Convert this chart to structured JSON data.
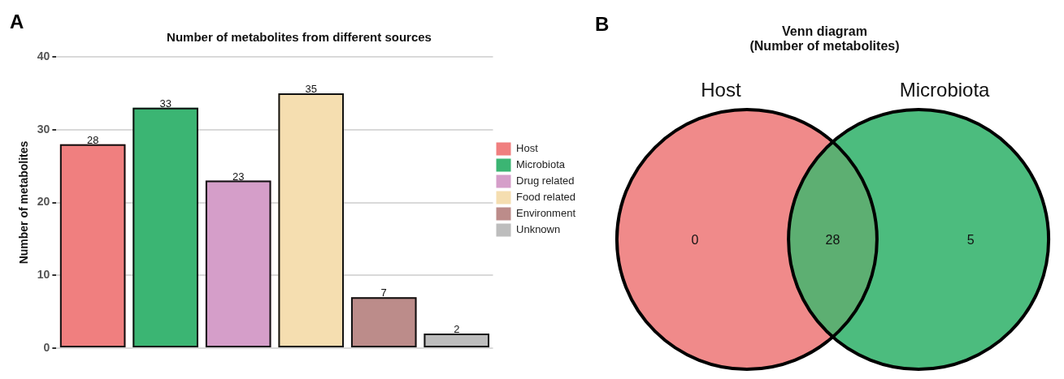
{
  "chart_data": [
    {
      "type": "bar",
      "title": "Number of metabolites from different sources",
      "ylabel": "Number of metabolites",
      "categories": [
        null,
        null,
        null,
        null,
        null,
        null
      ],
      "series": [
        {
          "name": "Host",
          "color": "#f07f7f",
          "values": [
            28,
            null,
            null,
            null,
            null,
            null
          ]
        },
        {
          "name": "Microbiota",
          "color": "#3bb573",
          "values": [
            null,
            33,
            null,
            null,
            null,
            null
          ]
        },
        {
          "name": "Drug related",
          "color": "#d59ec9",
          "values": [
            null,
            null,
            23,
            null,
            null,
            null
          ]
        },
        {
          "name": "Food related",
          "color": "#f5deb0",
          "values": [
            null,
            null,
            null,
            35,
            null,
            null
          ]
        },
        {
          "name": "Environment",
          "color": "#bc8c8a",
          "values": [
            null,
            null,
            null,
            null,
            7,
            null
          ]
        },
        {
          "name": "Unknown",
          "color": "#bdbdbd",
          "values": [
            null,
            null,
            null,
            null,
            null,
            2
          ]
        }
      ],
      "ylim": [
        0,
        40
      ],
      "yticks": [
        0,
        10,
        20,
        30,
        40
      ],
      "grid": "y",
      "legend": "right",
      "tick_labels": "y",
      "data_labels": true,
      "annotations": [
        "A"
      ]
    },
    {
      "type": "other",
      "title": "Venn diagram\n(Number of metabolites)",
      "series": [
        {
          "name": "Host"
        },
        {
          "name": "Microbiota"
        }
      ],
      "colors": [
        "#f08a8a",
        "#5daf72",
        "#4cbc7e"
      ],
      "annotations": [
        "B",
        "0",
        "28",
        "5"
      ]
    }
  ]
}
